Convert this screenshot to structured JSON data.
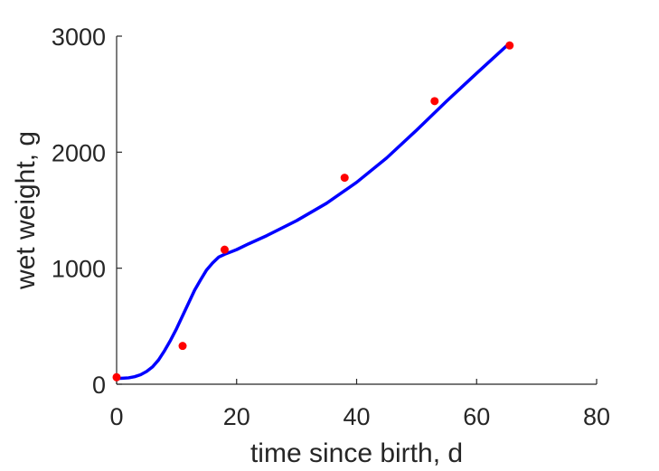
{
  "chart_data": {
    "type": "line",
    "xlabel": "time since birth, d",
    "ylabel": "wet weight, g",
    "xlim": [
      0,
      80
    ],
    "ylim": [
      0,
      3000
    ],
    "x_ticks": [
      0,
      20,
      40,
      60,
      80
    ],
    "y_ticks": [
      0,
      1000,
      2000,
      3000
    ],
    "grid": false,
    "legend": "none",
    "colors": {
      "axis": "#262626",
      "line": "#0000ff",
      "points": "#ff0000"
    },
    "series": [
      {
        "kind": "scatter",
        "x": [
          0,
          11,
          18,
          38,
          53,
          65.5
        ],
        "y": [
          60,
          330,
          1160,
          1780,
          2440,
          2920
        ]
      },
      {
        "kind": "line",
        "x": [
          0,
          1,
          2,
          3,
          4,
          5,
          6,
          7,
          8,
          9,
          10,
          11,
          12,
          13,
          14,
          15,
          16,
          17,
          18,
          19,
          20,
          22,
          25,
          30,
          35,
          40,
          45,
          50,
          55,
          60,
          65.5
        ],
        "y": [
          50,
          52,
          55,
          65,
          82,
          110,
          150,
          210,
          290,
          380,
          480,
          590,
          700,
          810,
          900,
          985,
          1045,
          1095,
          1120,
          1140,
          1160,
          1210,
          1280,
          1410,
          1560,
          1740,
          1950,
          2190,
          2440,
          2680,
          2940
        ]
      }
    ]
  }
}
